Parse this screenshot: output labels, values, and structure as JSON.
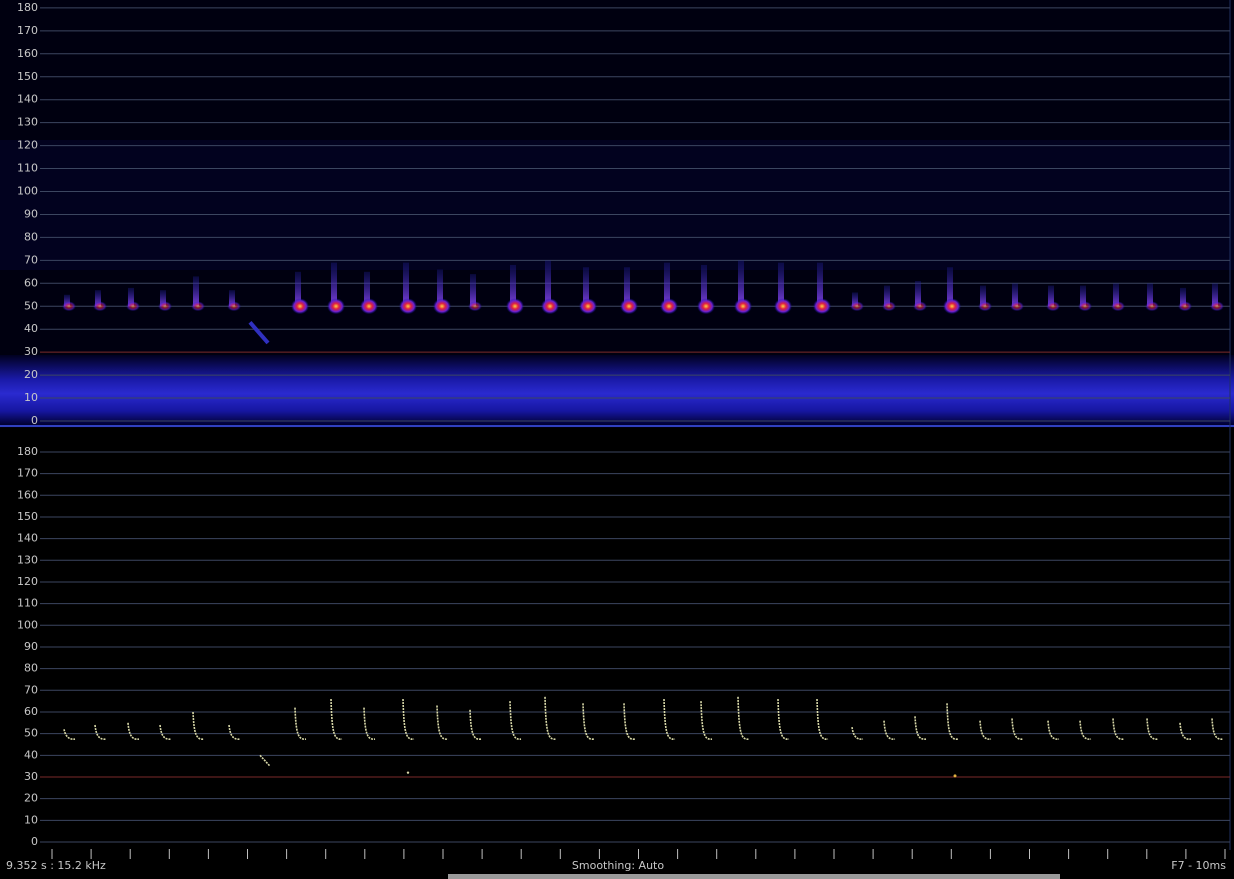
{
  "top_panel": {
    "ticks": [
      0,
      10,
      20,
      30,
      40,
      50,
      60,
      70,
      80,
      90,
      100,
      110,
      120,
      130,
      140,
      150,
      160,
      170,
      180
    ]
  },
  "bottom_panel": {
    "ticks": [
      0,
      10,
      20,
      30,
      40,
      50,
      60,
      70,
      80,
      90,
      100,
      110,
      120,
      130,
      140,
      150,
      160,
      170,
      180
    ]
  },
  "status_bar": {
    "cursor": "9.352 s : 15.2 kHz",
    "smoothing": "Smoothing: Auto",
    "mode": "F7 - 10ms"
  }
}
